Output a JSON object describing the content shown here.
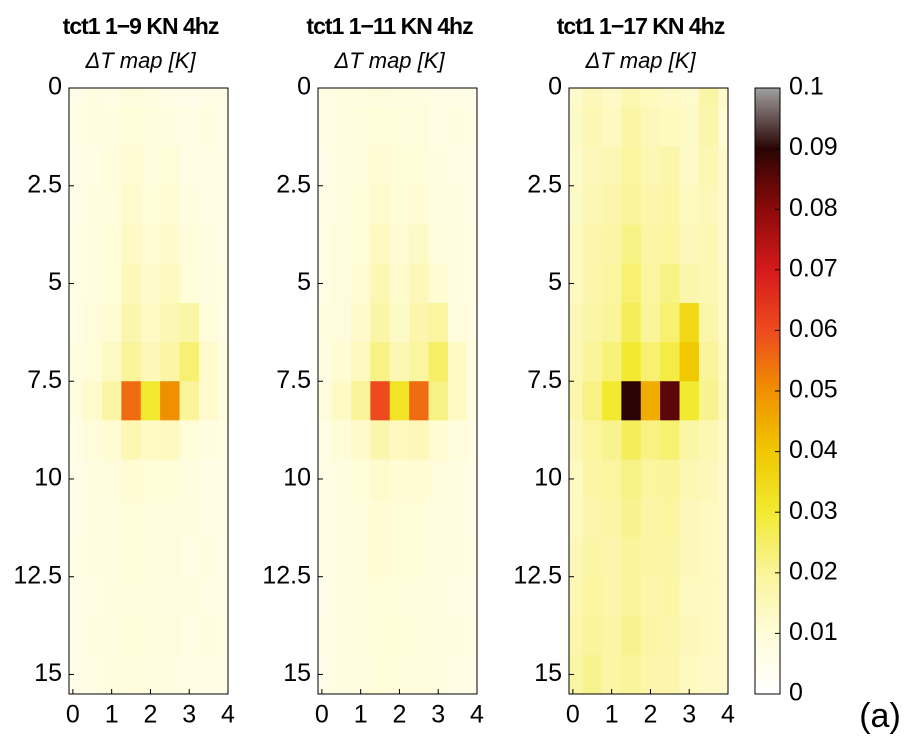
{
  "chart_data": [
    {
      "type": "heatmap",
      "title": "tct1 1−9 KN 4hz",
      "subtitle": "ΔT map [K]",
      "x": [
        0,
        0.5,
        1,
        1.5,
        2,
        2.5,
        3,
        3.5,
        4
      ],
      "y": [
        0,
        1,
        2,
        3,
        4,
        5,
        6,
        7,
        8,
        9,
        10,
        11,
        12,
        13,
        14,
        15
      ],
      "z": [
        [
          0.006,
          0.008,
          0.007,
          0.009,
          0.008,
          0.007,
          0.006,
          0.007,
          0.006
        ],
        [
          0.007,
          0.008,
          0.008,
          0.01,
          0.009,
          0.008,
          0.007,
          0.008,
          0.006
        ],
        [
          0.006,
          0.007,
          0.009,
          0.011,
          0.009,
          0.01,
          0.007,
          0.007,
          0.006
        ],
        [
          0.006,
          0.008,
          0.009,
          0.012,
          0.01,
          0.011,
          0.008,
          0.007,
          0.006
        ],
        [
          0.007,
          0.008,
          0.01,
          0.013,
          0.011,
          0.012,
          0.009,
          0.008,
          0.006
        ],
        [
          0.007,
          0.008,
          0.01,
          0.015,
          0.012,
          0.014,
          0.01,
          0.008,
          0.007
        ],
        [
          0.007,
          0.009,
          0.011,
          0.017,
          0.013,
          0.016,
          0.018,
          0.009,
          0.007
        ],
        [
          0.008,
          0.01,
          0.013,
          0.02,
          0.015,
          0.018,
          0.024,
          0.012,
          0.008
        ],
        [
          0.008,
          0.012,
          0.018,
          0.055,
          0.03,
          0.05,
          0.02,
          0.012,
          0.008
        ],
        [
          0.007,
          0.009,
          0.011,
          0.016,
          0.013,
          0.014,
          0.01,
          0.008,
          0.007
        ],
        [
          0.006,
          0.008,
          0.009,
          0.011,
          0.01,
          0.01,
          0.008,
          0.007,
          0.006
        ],
        [
          0.006,
          0.008,
          0.008,
          0.01,
          0.009,
          0.009,
          0.008,
          0.007,
          0.006
        ],
        [
          0.007,
          0.008,
          0.008,
          0.01,
          0.009,
          0.009,
          0.007,
          0.008,
          0.006
        ],
        [
          0.006,
          0.007,
          0.008,
          0.009,
          0.009,
          0.008,
          0.008,
          0.007,
          0.006
        ],
        [
          0.006,
          0.008,
          0.008,
          0.01,
          0.009,
          0.009,
          0.007,
          0.008,
          0.007
        ],
        [
          0.006,
          0.007,
          0.008,
          0.009,
          0.008,
          0.008,
          0.007,
          0.007,
          0.006
        ]
      ],
      "xlim": [
        -0.1,
        4
      ],
      "ylim": [
        0,
        15.5
      ],
      "xticks": [
        0,
        1,
        2,
        3,
        4
      ],
      "yticks": [
        0,
        2.5,
        5,
        7.5,
        10,
        12.5,
        15
      ]
    },
    {
      "type": "heatmap",
      "title": "tct1 1−11 KN 4hz",
      "subtitle": "ΔT map [K]",
      "x": [
        0,
        0.5,
        1,
        1.5,
        2,
        2.5,
        3,
        3.5,
        4
      ],
      "y": [
        0,
        1,
        2,
        3,
        4,
        5,
        6,
        7,
        8,
        9,
        10,
        11,
        12,
        13,
        14,
        15
      ],
      "z": [
        [
          0.007,
          0.008,
          0.008,
          0.009,
          0.008,
          0.008,
          0.007,
          0.007,
          0.006
        ],
        [
          0.007,
          0.008,
          0.009,
          0.01,
          0.009,
          0.009,
          0.007,
          0.008,
          0.007
        ],
        [
          0.006,
          0.008,
          0.009,
          0.011,
          0.01,
          0.01,
          0.008,
          0.007,
          0.006
        ],
        [
          0.007,
          0.008,
          0.01,
          0.012,
          0.01,
          0.011,
          0.008,
          0.008,
          0.006
        ],
        [
          0.007,
          0.009,
          0.01,
          0.014,
          0.011,
          0.013,
          0.009,
          0.008,
          0.007
        ],
        [
          0.007,
          0.009,
          0.011,
          0.016,
          0.012,
          0.015,
          0.011,
          0.008,
          0.007
        ],
        [
          0.008,
          0.009,
          0.012,
          0.018,
          0.013,
          0.017,
          0.019,
          0.009,
          0.007
        ],
        [
          0.008,
          0.011,
          0.014,
          0.022,
          0.016,
          0.019,
          0.025,
          0.013,
          0.008
        ],
        [
          0.009,
          0.013,
          0.02,
          0.06,
          0.032,
          0.055,
          0.022,
          0.013,
          0.008
        ],
        [
          0.007,
          0.01,
          0.012,
          0.017,
          0.014,
          0.015,
          0.011,
          0.009,
          0.007
        ],
        [
          0.007,
          0.008,
          0.01,
          0.012,
          0.011,
          0.011,
          0.009,
          0.008,
          0.006
        ],
        [
          0.007,
          0.008,
          0.009,
          0.011,
          0.01,
          0.01,
          0.008,
          0.008,
          0.006
        ],
        [
          0.007,
          0.008,
          0.009,
          0.011,
          0.01,
          0.01,
          0.008,
          0.008,
          0.007
        ],
        [
          0.006,
          0.008,
          0.009,
          0.01,
          0.009,
          0.009,
          0.008,
          0.007,
          0.006
        ],
        [
          0.007,
          0.008,
          0.009,
          0.01,
          0.01,
          0.009,
          0.008,
          0.008,
          0.007
        ],
        [
          0.006,
          0.008,
          0.008,
          0.01,
          0.009,
          0.009,
          0.008,
          0.007,
          0.006
        ]
      ],
      "xlim": [
        -0.1,
        4
      ],
      "ylim": [
        0,
        15.5
      ],
      "xticks": [
        0,
        1,
        2,
        3,
        4
      ],
      "yticks": [
        0,
        2.5,
        5,
        7.5,
        10,
        12.5,
        15
      ]
    },
    {
      "type": "heatmap",
      "title": "tct1 1−17 KN 4hz",
      "subtitle": "ΔT map [K]",
      "x": [
        0,
        0.5,
        1,
        1.5,
        2,
        2.5,
        3,
        3.5,
        4
      ],
      "y": [
        0,
        1,
        2,
        3,
        4,
        5,
        6,
        7,
        8,
        9,
        10,
        11,
        12,
        13,
        14,
        15
      ],
      "z": [
        [
          0.012,
          0.015,
          0.013,
          0.016,
          0.014,
          0.013,
          0.012,
          0.018,
          0.012
        ],
        [
          0.013,
          0.016,
          0.014,
          0.018,
          0.015,
          0.014,
          0.013,
          0.017,
          0.011
        ],
        [
          0.012,
          0.015,
          0.016,
          0.019,
          0.016,
          0.017,
          0.013,
          0.016,
          0.012
        ],
        [
          0.013,
          0.016,
          0.017,
          0.02,
          0.017,
          0.018,
          0.014,
          0.015,
          0.012
        ],
        [
          0.014,
          0.017,
          0.018,
          0.022,
          0.018,
          0.019,
          0.015,
          0.016,
          0.012
        ],
        [
          0.014,
          0.017,
          0.019,
          0.024,
          0.019,
          0.022,
          0.017,
          0.016,
          0.013
        ],
        [
          0.015,
          0.018,
          0.02,
          0.026,
          0.02,
          0.024,
          0.035,
          0.017,
          0.013
        ],
        [
          0.016,
          0.02,
          0.023,
          0.03,
          0.024,
          0.028,
          0.04,
          0.02,
          0.014
        ],
        [
          0.017,
          0.022,
          0.03,
          0.09,
          0.045,
          0.085,
          0.03,
          0.021,
          0.015
        ],
        [
          0.015,
          0.019,
          0.021,
          0.026,
          0.022,
          0.024,
          0.018,
          0.016,
          0.013
        ],
        [
          0.014,
          0.018,
          0.019,
          0.022,
          0.019,
          0.02,
          0.016,
          0.015,
          0.012
        ],
        [
          0.014,
          0.017,
          0.018,
          0.021,
          0.018,
          0.019,
          0.015,
          0.014,
          0.012
        ],
        [
          0.015,
          0.018,
          0.017,
          0.02,
          0.018,
          0.018,
          0.015,
          0.014,
          0.012
        ],
        [
          0.016,
          0.019,
          0.017,
          0.02,
          0.017,
          0.018,
          0.014,
          0.014,
          0.012
        ],
        [
          0.017,
          0.02,
          0.018,
          0.021,
          0.018,
          0.017,
          0.015,
          0.014,
          0.012
        ],
        [
          0.018,
          0.021,
          0.018,
          0.02,
          0.017,
          0.017,
          0.014,
          0.013,
          0.012
        ]
      ],
      "xlim": [
        -0.1,
        4
      ],
      "ylim": [
        0,
        15.5
      ],
      "xticks": [
        0,
        1,
        2,
        3,
        4
      ],
      "yticks": [
        0,
        2.5,
        5,
        7.5,
        10,
        12.5,
        15
      ]
    }
  ],
  "colorbar": {
    "clim": [
      0,
      0.1
    ],
    "ticks": [
      0,
      0.01,
      0.02,
      0.03,
      0.04,
      0.05,
      0.06,
      0.07,
      0.08,
      0.09,
      0.1
    ],
    "colormap": [
      "#ffffff",
      "#fffcd8",
      "#faf49a",
      "#f2ea30",
      "#f0c800",
      "#f09000",
      "#ee4a20",
      "#d41a1a",
      "#8c0a0a",
      "#2a0404",
      "#a0a0a0"
    ]
  },
  "panel_label": "(a)"
}
